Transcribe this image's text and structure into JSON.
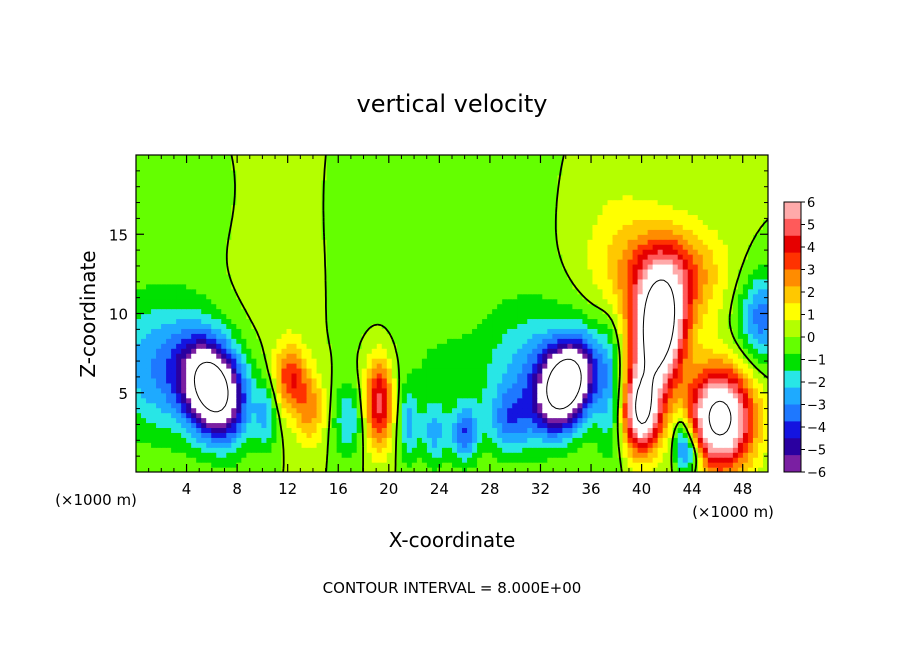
{
  "chart_data": {
    "type": "heatmap",
    "title": "vertical velocity",
    "xlabel": "X-coordinate",
    "ylabel": "Z-coordinate",
    "x_unit_left": "(×1000 m)",
    "x_unit_right": "(×1000 m)",
    "footer": "CONTOUR INTERVAL = 8.000E+00",
    "xlim": [
      0,
      50
    ],
    "ylim": [
      0,
      20
    ],
    "x_ticks": [
      4,
      8,
      12,
      16,
      20,
      24,
      28,
      32,
      36,
      40,
      44,
      48
    ],
    "x_tick_labels": [
      "4",
      "8",
      "12",
      "16",
      "20",
      "24",
      "28",
      "32",
      "36",
      "40",
      "44",
      "48"
    ],
    "y_ticks": [
      5,
      10,
      15
    ],
    "y_tick_labels": [
      "5",
      "10",
      "15"
    ],
    "colorbar": {
      "min": -6,
      "max": 6,
      "ticks": [
        6,
        5,
        4,
        3,
        2,
        1,
        0,
        -1,
        -2,
        -3,
        -4,
        -5,
        -6
      ],
      "tick_labels": [
        "6",
        "5",
        "4",
        "3",
        "2",
        "1",
        "0",
        "−1",
        "−2",
        "−3",
        "−4",
        "−5",
        "−6"
      ],
      "colors": [
        "#7a1fa2",
        "#2a00a0",
        "#1414e0",
        "#1e78ff",
        "#1eaaff",
        "#28e6e6",
        "#00e100",
        "#64ff00",
        "#b4ff00",
        "#ffff00",
        "#ffc800",
        "#ff8c00",
        "#ff3200",
        "#e60000",
        "#ff5a5a",
        "#ffaaaa"
      ]
    },
    "features": [
      {
        "x": 6.2,
        "z": 5.2,
        "sx": 1.6,
        "sz": 2.2,
        "value": -9,
        "rot": -0.4
      },
      {
        "x": 34.0,
        "z": 5.5,
        "sx": 1.4,
        "sz": 2.0,
        "value": -9,
        "rot": 0.5
      },
      {
        "x": 41.3,
        "z": 8.8,
        "sx": 1.4,
        "sz": 2.6,
        "value": 10,
        "rot": 0.1
      },
      {
        "x": 46.2,
        "z": 3.4,
        "sx": 1.8,
        "sz": 2.2,
        "value": 9
      },
      {
        "x": 40.0,
        "z": 3.8,
        "sx": 1.0,
        "sz": 1.8,
        "value": 8
      },
      {
        "x": 19.2,
        "z": 4.4,
        "sx": 0.8,
        "sz": 2.0,
        "value": 5
      },
      {
        "x": 12.2,
        "z": 6.0,
        "sx": 0.9,
        "sz": 1.5,
        "value": 3.5
      },
      {
        "x": 13.8,
        "z": 4.0,
        "sx": 0.9,
        "sz": 1.6,
        "value": 2.5
      },
      {
        "x": 42.0,
        "z": 12.5,
        "sx": 3.0,
        "sz": 2.2,
        "value": 3.5
      },
      {
        "x": 2.2,
        "z": 6.6,
        "sx": 3.2,
        "sz": 3.0,
        "value": -3
      },
      {
        "x": 31.8,
        "z": 6.4,
        "sx": 3.0,
        "sz": 2.8,
        "value": -2.6
      },
      {
        "x": 49.5,
        "z": 9.8,
        "sx": 1.3,
        "sz": 2.0,
        "value": -3.5
      },
      {
        "x": 37.5,
        "z": 5.0,
        "sx": 0.8,
        "sz": 3.0,
        "value": -2
      },
      {
        "x": 23.6,
        "z": 2.5,
        "sx": 0.7,
        "sz": 1.5,
        "value": -2.5
      },
      {
        "x": 26.0,
        "z": 2.5,
        "sx": 0.8,
        "sz": 1.3,
        "value": -3.5
      },
      {
        "x": 29.5,
        "z": 3.2,
        "sx": 1.2,
        "sz": 1.5,
        "value": -2.5
      },
      {
        "x": 21.6,
        "z": 3.0,
        "sx": 0.6,
        "sz": 1.6,
        "value": -2.5
      },
      {
        "x": 10.3,
        "z": 3.6,
        "sx": 0.6,
        "sz": 1.5,
        "value": -2.2
      },
      {
        "x": 16.8,
        "z": 3.3,
        "sx": 0.9,
        "sz": 1.6,
        "value": -2.2
      },
      {
        "x": 43.2,
        "z": 2.0,
        "sx": 0.5,
        "sz": 1.3,
        "value": -3.5
      },
      {
        "x": 44.0,
        "z": 1.2,
        "sx": 0.6,
        "sz": 1.0,
        "value": -3
      },
      {
        "x": 10.8,
        "z": 15.0,
        "sx": 3.2,
        "sz": 6.0,
        "value": 0.6
      },
      {
        "x": 23.0,
        "z": 14.0,
        "sx": 7.0,
        "sz": 6.0,
        "value": -0.4
      },
      {
        "x": 4.0,
        "z": 17.0,
        "sx": 6.0,
        "sz": 3.5,
        "value": -0.4
      },
      {
        "x": 38.0,
        "z": 15.0,
        "sx": 2.5,
        "sz": 3.5,
        "value": 0.8
      },
      {
        "x": 24.5,
        "z": 6.5,
        "sx": 2.0,
        "sz": 1.5,
        "value": -0.8
      }
    ]
  }
}
